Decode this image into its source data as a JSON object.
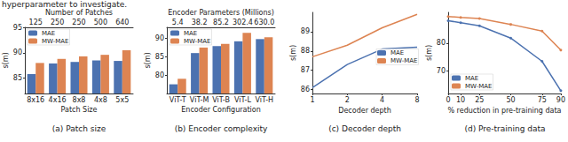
{
  "header": "hyperparameter to investigate.",
  "chart_data": [
    {
      "type": "bar",
      "caption": "(a) Patch size",
      "xlabel": "Patch Size",
      "ylabel": "s(m)",
      "x2label": "Number of Patches",
      "x2categories": [
        "125",
        "250",
        "250",
        "500",
        "640"
      ],
      "categories": [
        "8x16",
        "4x16",
        "8x8",
        "4x8",
        "5x5"
      ],
      "series": [
        {
          "name": "MAE",
          "color": "#4c72b0",
          "values": [
            85.8,
            87.9,
            88.2,
            88.5,
            88.4
          ]
        },
        {
          "name": "MW-MAE",
          "color": "#dd8452",
          "values": [
            88.0,
            88.8,
            89.3,
            89.6,
            90.5
          ]
        }
      ],
      "ylim": [
        82,
        95
      ],
      "yticks": [
        85,
        90,
        95
      ],
      "grid": false,
      "legend": "upper left"
    },
    {
      "type": "bar",
      "caption": "(b) Encoder complexity",
      "xlabel": "Encoder Configuration",
      "ylabel": "s(m)",
      "x2label": "Encoder Parameters (Millions)",
      "x2categories": [
        "5.4",
        "38.2",
        "85.2",
        "302.4",
        "630.0"
      ],
      "categories": [
        "ViT-T",
        "ViT-M",
        "ViT-B",
        "ViT-L",
        "ViT-H"
      ],
      "series": [
        {
          "name": "MAE",
          "color": "#4c72b0",
          "values": [
            77.5,
            86.0,
            87.9,
            89.2,
            89.8
          ]
        },
        {
          "name": "MW-MAE",
          "color": "#dd8452",
          "values": [
            79.0,
            87.5,
            88.5,
            91.5,
            90.3
          ]
        }
      ],
      "ylim": [
        75,
        93
      ],
      "yticks": [
        80,
        85,
        90
      ],
      "grid": false,
      "legend": "upper left"
    },
    {
      "type": "line",
      "caption": "(c) Decoder depth",
      "xlabel": "Decoder depth",
      "ylabel": "s(m)",
      "x": [
        1,
        2,
        4,
        8
      ],
      "log": "x",
      "series": [
        {
          "name": "MAE",
          "color": "#4c72b0",
          "values": [
            86.1,
            87.3,
            88.1,
            88.2
          ]
        },
        {
          "name": "MW-MAE",
          "color": "#dd8452",
          "values": [
            87.7,
            88.3,
            89.2,
            89.9
          ]
        }
      ],
      "xlim": [
        1,
        8
      ],
      "xticks": [
        1,
        2,
        4,
        8
      ],
      "ylim": [
        85.8,
        90
      ],
      "yticks": [
        86,
        87,
        88,
        89
      ],
      "grid": false,
      "legend": "right"
    },
    {
      "type": "line",
      "caption": "(d) Pre-training data",
      "xlabel": "% reduction in pre-training data",
      "ylabel": "s(m)",
      "x": [
        0,
        10,
        25,
        50,
        75,
        90
      ],
      "series": [
        {
          "name": "MAE",
          "color": "#4c72b0",
          "marker": "circle",
          "values": [
            88.0,
            87.3,
            86.2,
            81.8,
            73.5,
            63.0
          ]
        },
        {
          "name": "MW-MAE",
          "color": "#dd8452",
          "marker": "circle",
          "values": [
            89.5,
            89.2,
            88.8,
            86.7,
            84.3,
            77.5
          ]
        }
      ],
      "xlim": [
        0,
        90
      ],
      "xticks": [
        0,
        10,
        25,
        50,
        75,
        90
      ],
      "ylim": [
        62,
        91
      ],
      "yticks": [
        70,
        80
      ],
      "grid": false,
      "legend": "lower left"
    }
  ]
}
